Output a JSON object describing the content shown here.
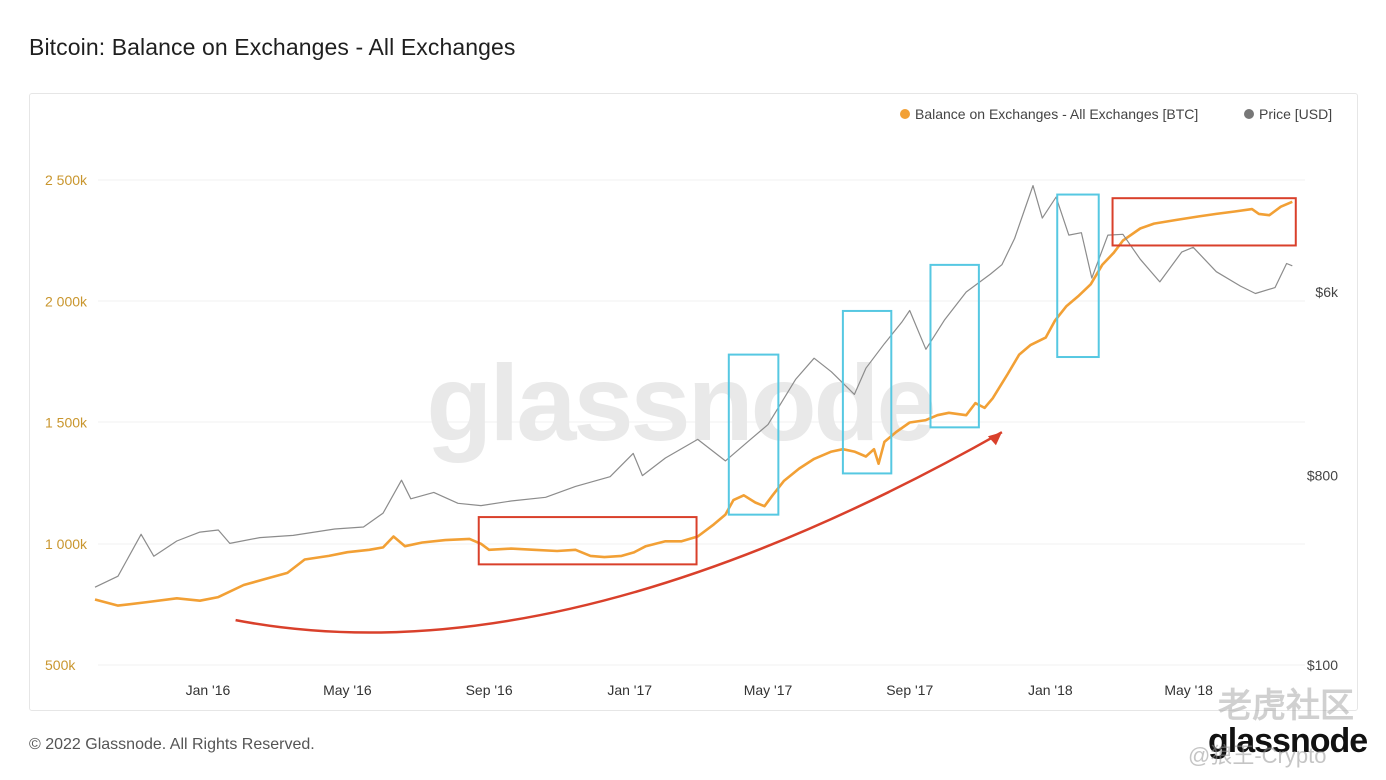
{
  "title": "Bitcoin: Balance on Exchanges - All Exchanges",
  "legend": {
    "balance": "Balance on Exchanges - All Exchanges [BTC]",
    "price": "Price [USD]"
  },
  "watermark": "glassnode",
  "footer": "© 2022 Glassnode. All Rights Reserved.",
  "brand": "glassnode",
  "overlay_watermark": {
    "text": "老虎社区",
    "sub": "@狼王-Crypto"
  },
  "colors": {
    "balance": "#F2A035",
    "price": "#8c8c8c",
    "left_axis": "#C9962E",
    "right_axis": "#444444",
    "red_box": "#D9402B",
    "blue_box": "#56C8E2",
    "arrow": "#D9402B"
  },
  "chart_data": {
    "type": "line",
    "title": "Bitcoin: Balance on Exchanges - All Exchanges",
    "x_ticks": [
      "Jan '16",
      "May '16",
      "Sep '16",
      "Jan '17",
      "May '17",
      "Sep '17",
      "Jan '18",
      "May '18"
    ],
    "y_left": {
      "ticks": [
        "500k",
        "1 000k",
        "1 500k",
        "2 000k",
        "2 500k"
      ],
      "range": [
        500000,
        2500000
      ]
    },
    "y_right": {
      "ticks": [
        "$100",
        "$800",
        "$6k"
      ],
      "scale": "log"
    },
    "legend_position": "top-right",
    "grid": true,
    "series": [
      {
        "name": "Balance on Exchanges - All Exchanges [BTC]",
        "axis": "left",
        "points": [
          [
            "2015-09-25",
            770000
          ],
          [
            "2015-10-15",
            745000
          ],
          [
            "2015-11-10",
            760000
          ],
          [
            "2015-12-05",
            775000
          ],
          [
            "2015-12-25",
            765000
          ],
          [
            "2016-01-10",
            780000
          ],
          [
            "2016-02-01",
            830000
          ],
          [
            "2016-02-20",
            855000
          ],
          [
            "2016-03-10",
            880000
          ],
          [
            "2016-03-25",
            935000
          ],
          [
            "2016-04-15",
            950000
          ],
          [
            "2016-05-01",
            965000
          ],
          [
            "2016-05-20",
            975000
          ],
          [
            "2016-06-01",
            985000
          ],
          [
            "2016-06-10",
            1030000
          ],
          [
            "2016-06-20",
            990000
          ],
          [
            "2016-07-05",
            1005000
          ],
          [
            "2016-07-25",
            1015000
          ],
          [
            "2016-08-15",
            1020000
          ],
          [
            "2016-08-25",
            1000000
          ],
          [
            "2016-09-01",
            975000
          ],
          [
            "2016-09-20",
            980000
          ],
          [
            "2016-10-10",
            975000
          ],
          [
            "2016-10-30",
            970000
          ],
          [
            "2016-11-15",
            975000
          ],
          [
            "2016-11-28",
            950000
          ],
          [
            "2016-12-10",
            945000
          ],
          [
            "2016-12-25",
            950000
          ],
          [
            "2017-01-05",
            965000
          ],
          [
            "2017-01-15",
            990000
          ],
          [
            "2017-02-01",
            1010000
          ],
          [
            "2017-02-15",
            1010000
          ],
          [
            "2017-03-01",
            1030000
          ],
          [
            "2017-03-15",
            1080000
          ],
          [
            "2017-03-25",
            1120000
          ],
          [
            "2017-04-01",
            1180000
          ],
          [
            "2017-04-10",
            1200000
          ],
          [
            "2017-04-20",
            1170000
          ],
          [
            "2017-04-28",
            1155000
          ],
          [
            "2017-05-05",
            1200000
          ],
          [
            "2017-05-15",
            1260000
          ],
          [
            "2017-05-28",
            1310000
          ],
          [
            "2017-06-10",
            1350000
          ],
          [
            "2017-06-25",
            1380000
          ],
          [
            "2017-07-05",
            1390000
          ],
          [
            "2017-07-15",
            1380000
          ],
          [
            "2017-07-25",
            1360000
          ],
          [
            "2017-08-01",
            1390000
          ],
          [
            "2017-08-05",
            1330000
          ],
          [
            "2017-08-10",
            1420000
          ],
          [
            "2017-08-20",
            1460000
          ],
          [
            "2017-09-01",
            1500000
          ],
          [
            "2017-09-15",
            1510000
          ],
          [
            "2017-09-25",
            1530000
          ],
          [
            "2017-10-05",
            1540000
          ],
          [
            "2017-10-20",
            1530000
          ],
          [
            "2017-10-28",
            1580000
          ],
          [
            "2017-11-05",
            1560000
          ],
          [
            "2017-11-12",
            1600000
          ],
          [
            "2017-11-25",
            1700000
          ],
          [
            "2017-12-05",
            1780000
          ],
          [
            "2017-12-15",
            1820000
          ],
          [
            "2017-12-28",
            1850000
          ],
          [
            "2018-01-05",
            1920000
          ],
          [
            "2018-01-15",
            1980000
          ],
          [
            "2018-01-25",
            2020000
          ],
          [
            "2018-02-05",
            2070000
          ],
          [
            "2018-02-15",
            2150000
          ],
          [
            "2018-02-25",
            2200000
          ],
          [
            "2018-03-05",
            2250000
          ],
          [
            "2018-03-20",
            2300000
          ],
          [
            "2018-04-01",
            2320000
          ],
          [
            "2018-04-20",
            2335000
          ],
          [
            "2018-05-10",
            2350000
          ],
          [
            "2018-05-25",
            2360000
          ],
          [
            "2018-06-10",
            2370000
          ],
          [
            "2018-06-25",
            2380000
          ],
          [
            "2018-07-01",
            2360000
          ],
          [
            "2018-07-10",
            2355000
          ],
          [
            "2018-07-20",
            2390000
          ],
          [
            "2018-07-30",
            2410000
          ]
        ]
      },
      {
        "name": "Price [USD]",
        "axis": "right",
        "points": [
          [
            "2015-09-25",
            235
          ],
          [
            "2015-10-15",
            265
          ],
          [
            "2015-11-04",
            420
          ],
          [
            "2015-11-15",
            330
          ],
          [
            "2015-12-05",
            390
          ],
          [
            "2015-12-25",
            430
          ],
          [
            "2016-01-10",
            440
          ],
          [
            "2016-01-20",
            380
          ],
          [
            "2016-02-15",
            405
          ],
          [
            "2016-03-15",
            415
          ],
          [
            "2016-04-20",
            445
          ],
          [
            "2016-05-15",
            455
          ],
          [
            "2016-06-01",
            530
          ],
          [
            "2016-06-17",
            760
          ],
          [
            "2016-06-25",
            620
          ],
          [
            "2016-07-15",
            665
          ],
          [
            "2016-08-05",
            590
          ],
          [
            "2016-08-25",
            575
          ],
          [
            "2016-09-20",
            605
          ],
          [
            "2016-10-20",
            630
          ],
          [
            "2016-11-15",
            710
          ],
          [
            "2016-12-15",
            790
          ],
          [
            "2017-01-04",
            1020
          ],
          [
            "2017-01-12",
            800
          ],
          [
            "2017-02-01",
            970
          ],
          [
            "2017-03-01",
            1190
          ],
          [
            "2017-03-25",
            940
          ],
          [
            "2017-04-15",
            1180
          ],
          [
            "2017-05-01",
            1400
          ],
          [
            "2017-05-25",
            2300
          ],
          [
            "2017-06-10",
            2900
          ],
          [
            "2017-06-25",
            2500
          ],
          [
            "2017-07-15",
            1950
          ],
          [
            "2017-07-25",
            2600
          ],
          [
            "2017-08-10",
            3400
          ],
          [
            "2017-08-25",
            4300
          ],
          [
            "2017-09-01",
            4900
          ],
          [
            "2017-09-15",
            3200
          ],
          [
            "2017-10-01",
            4400
          ],
          [
            "2017-10-20",
            6000
          ],
          [
            "2017-11-10",
            7300
          ],
          [
            "2017-11-20",
            8100
          ],
          [
            "2017-12-01",
            10800
          ],
          [
            "2017-12-10",
            15000
          ],
          [
            "2017-12-17",
            19300
          ],
          [
            "2017-12-25",
            13500
          ],
          [
            "2018-01-06",
            17000
          ],
          [
            "2018-01-17",
            11200
          ],
          [
            "2018-01-28",
            11500
          ],
          [
            "2018-02-06",
            7000
          ],
          [
            "2018-02-20",
            11200
          ],
          [
            "2018-03-05",
            11300
          ],
          [
            "2018-03-20",
            8600
          ],
          [
            "2018-04-06",
            6700
          ],
          [
            "2018-04-25",
            9300
          ],
          [
            "2018-05-05",
            9800
          ],
          [
            "2018-05-25",
            7500
          ],
          [
            "2018-06-15",
            6400
          ],
          [
            "2018-06-28",
            5900
          ],
          [
            "2018-07-15",
            6300
          ],
          [
            "2018-07-25",
            8200
          ],
          [
            "2018-07-30",
            8000
          ]
        ]
      }
    ],
    "annotations": [
      {
        "type": "box",
        "color": "red",
        "x": [
          "2016-08-23",
          "2017-02-28"
        ],
        "y": [
          915000,
          1110000
        ]
      },
      {
        "type": "box",
        "color": "blue",
        "x": [
          "2017-03-28",
          "2017-05-10"
        ],
        "y": [
          1120000,
          1780000
        ]
      },
      {
        "type": "box",
        "color": "blue",
        "x": [
          "2017-07-05",
          "2017-08-16"
        ],
        "y": [
          1290000,
          1960000
        ]
      },
      {
        "type": "box",
        "color": "blue",
        "x": [
          "2017-09-19",
          "2017-10-31"
        ],
        "y": [
          1480000,
          2150000
        ]
      },
      {
        "type": "box",
        "color": "blue",
        "x": [
          "2018-01-07",
          "2018-02-12"
        ],
        "y": [
          1770000,
          2440000
        ]
      },
      {
        "type": "box",
        "color": "red",
        "x": [
          "2018-02-24",
          "2018-08-02"
        ],
        "y": [
          2230000,
          2425000
        ]
      },
      {
        "type": "arrow",
        "color": "red",
        "points": [
          [
            "2016-01-25",
            685000
          ],
          [
            "2016-11-01",
            655000
          ],
          [
            "2017-11-20",
            1460000
          ]
        ]
      }
    ]
  }
}
